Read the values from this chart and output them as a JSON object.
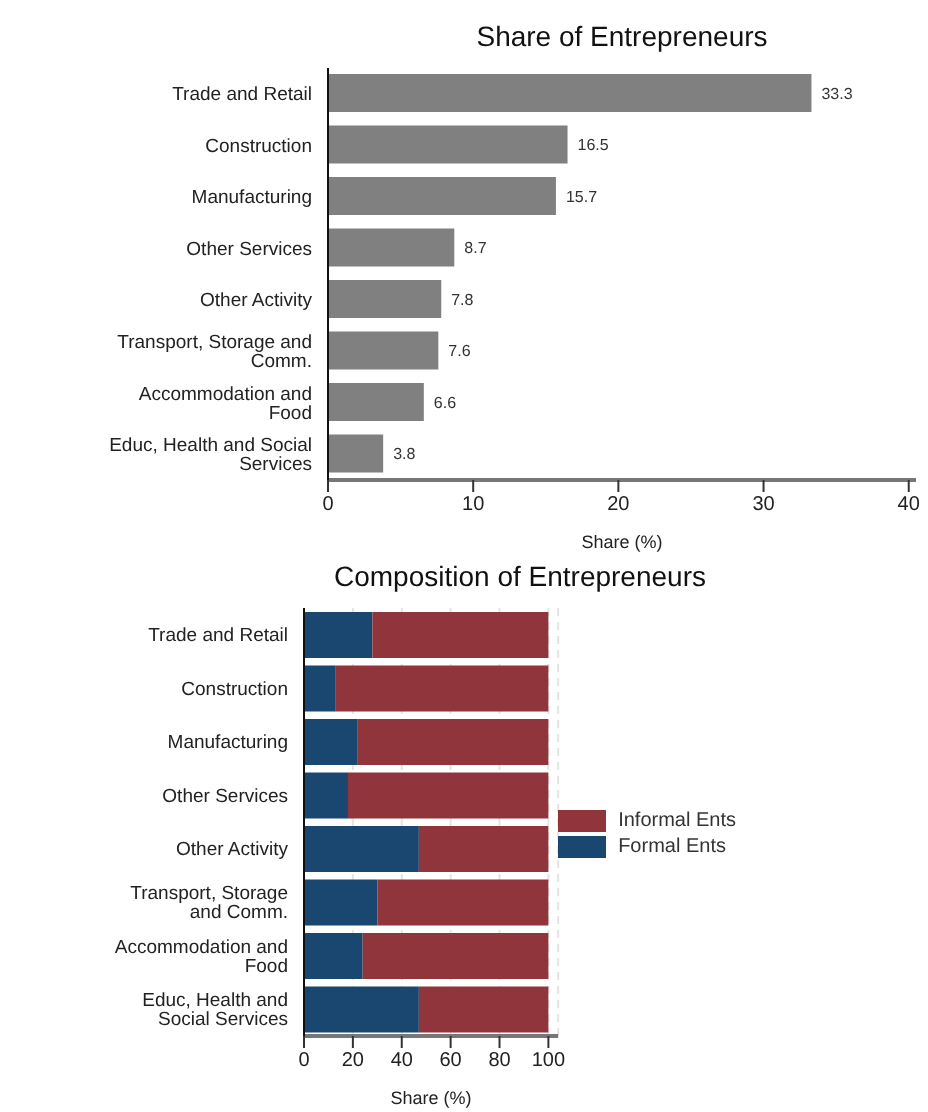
{
  "chart_data": [
    {
      "type": "bar",
      "orientation": "horizontal",
      "title": "Share of Entrepreneurs",
      "xlabel": "Share (%)",
      "categories": [
        "Trade and Retail",
        "Construction",
        "Manufacturing",
        "Other Services",
        "Other Activity",
        "Transport, Storage and Comm.",
        "Accommodation and Food",
        "Educ, Health and Social Services"
      ],
      "values": [
        33.3,
        16.5,
        15.7,
        8.7,
        7.8,
        7.6,
        6.6,
        3.8
      ],
      "color": "#808080",
      "data_labels": true,
      "xlim": [
        0,
        40.5
      ],
      "xticks": [
        0,
        10,
        20,
        30,
        40
      ],
      "grid": false,
      "legend": false
    },
    {
      "type": "bar",
      "orientation": "horizontal",
      "stacked": true,
      "title": "Composition of Entrepreneurs",
      "xlabel": "Share (%)",
      "categories": [
        "Trade and Retail",
        "Construction",
        "Manufacturing",
        "Other Services",
        "Other Activity",
        "Transport, Storage and Comm.",
        "Accommodation and Food",
        "Educ, Health and Social Services"
      ],
      "series": [
        {
          "name": "Formal Ents",
          "color": "#1a476f",
          "values": [
            28,
            13,
            22,
            18,
            47,
            30,
            24,
            47
          ]
        },
        {
          "name": "Informal Ents",
          "color": "#90353b",
          "values": [
            72,
            87,
            78,
            82,
            53,
            70,
            76,
            53
          ]
        }
      ],
      "xlim": [
        0,
        104
      ],
      "xticks": [
        0,
        20,
        40,
        60,
        80,
        100
      ],
      "grid": "x",
      "legend": "right"
    }
  ]
}
